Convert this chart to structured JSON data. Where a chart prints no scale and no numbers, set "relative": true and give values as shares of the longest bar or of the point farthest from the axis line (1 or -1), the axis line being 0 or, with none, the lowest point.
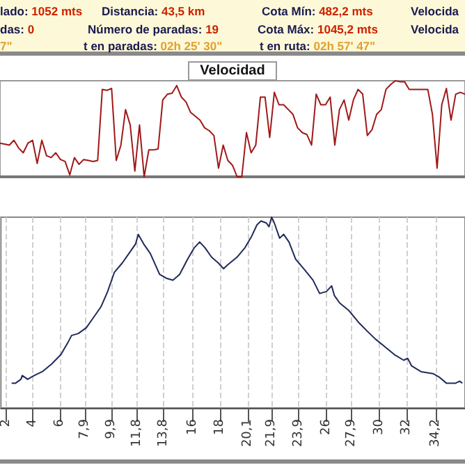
{
  "chart_data": [
    {
      "type": "other",
      "annotations": [
        "lado: 1052 mts",
        "Distancia: 43,5 km",
        "Cota Mín: 482,2 mts",
        "Velocida",
        "das: 0",
        "Número de paradas: 19",
        "Cota Máx: 1045,2 mts",
        "Velocida",
        "7\"",
        "t en paradas: 02h 25' 30\"",
        "t en ruta: 02h 57' 47\""
      ]
    },
    {
      "type": "line",
      "title": "Velocidad",
      "relative": true,
      "tick_labels": false,
      "color": "#a01818",
      "categories": [
        null,
        null,
        null,
        null,
        null,
        null,
        null,
        null,
        null,
        null,
        null,
        null,
        null,
        null,
        null,
        null,
        null,
        null,
        null,
        null,
        null,
        null,
        null,
        null,
        null,
        null,
        null,
        null,
        null,
        null,
        null,
        null,
        null,
        null,
        null,
        null,
        null,
        null,
        null,
        null,
        null,
        null,
        null,
        null,
        null,
        null,
        null,
        null,
        null,
        null,
        null,
        null,
        null,
        null,
        null,
        null,
        null,
        null,
        null,
        null,
        null,
        null,
        null,
        null,
        null,
        null,
        null,
        null,
        null,
        null,
        null,
        null,
        null,
        null,
        null,
        null,
        null,
        null,
        null,
        null,
        null,
        null,
        null,
        null,
        null,
        null,
        null,
        null,
        null,
        null,
        null,
        null,
        null,
        null,
        null,
        null,
        null,
        null,
        null,
        null,
        null
      ],
      "values": [
        0.35,
        0.34,
        0.33,
        0.38,
        0.3,
        0.25,
        0.35,
        0.38,
        0.14,
        0.38,
        0.22,
        0.2,
        0.25,
        0.18,
        0.16,
        0.02,
        0.2,
        0.13,
        0.18,
        0.17,
        0.16,
        0.17,
        0.91,
        0.9,
        0.92,
        0.17,
        0.33,
        0.7,
        0.54,
        0.06,
        0.54,
        0,
        0.28,
        0.28,
        0.29,
        0.8,
        0.86,
        0.87,
        0.95,
        0.83,
        0.78,
        0.67,
        0.63,
        0.59,
        0.51,
        0.48,
        0.43,
        0.09,
        0.33,
        0.17,
        0.12,
        0,
        0,
        0.46,
        0.25,
        0.33,
        0.83,
        0.83,
        0.41,
        0.88,
        0.75,
        0.75,
        0.7,
        0.65,
        0.51,
        0.46,
        0.44,
        0.33,
        0.86,
        0.75,
        0.75,
        0.83,
        0.33,
        0.7,
        0.8,
        0.59,
        0.8,
        0.91,
        0.86,
        0.43,
        0.49,
        0.65,
        0.7,
        0.91,
        0.96,
        1,
        0.99,
        0.99,
        0.91,
        0.91,
        0.91,
        0.91,
        0.91,
        0.65,
        0.09,
        0.75,
        0.92,
        0.59,
        0.86,
        0.88,
        0.86
      ]
    },
    {
      "type": "line",
      "relative": true,
      "tick_labels": "x",
      "grid": "x",
      "color": "#1f2a5a",
      "xlim": [
        1.6,
        36.4
      ],
      "xticks": [
        2,
        4,
        6,
        {
          "value": 7.9,
          "label": "7,9"
        },
        {
          "value": 9.9,
          "label": "9,9"
        },
        {
          "value": 11.8,
          "label": "11,8"
        },
        {
          "value": 13.8,
          "label": "13,8"
        },
        16,
        18,
        {
          "value": 20.1,
          "label": "20,1"
        },
        {
          "value": 21.9,
          "label": "21,9"
        },
        {
          "value": 23.9,
          "label": "23,9"
        },
        26,
        {
          "value": 27.9,
          "label": "27,9"
        },
        30,
        32,
        {
          "value": 34.2,
          "label": "34,2"
        }
      ],
      "x": [
        2.4,
        2.7,
        3.1,
        3.2,
        3.6,
        4.1,
        4.7,
        5.4,
        6.1,
        6.6,
        6.9,
        7.4,
        8.0,
        8.5,
        9.1,
        9.6,
        10.1,
        10.7,
        11.2,
        11.7,
        11.9,
        12.3,
        12.8,
        13.5,
        14.0,
        14.5,
        15.0,
        15.6,
        16.1,
        16.5,
        16.9,
        17.4,
        17.9,
        18.3,
        18.6,
        19.3,
        19.9,
        20.4,
        20.8,
        21.1,
        21.5,
        21.7,
        21.9,
        22.1,
        22.5,
        22.8,
        23.2,
        23.7,
        24.3,
        25.0,
        25.5,
        26.0,
        26.4,
        26.6,
        27.0,
        27.7,
        28.4,
        29.1,
        29.7,
        30.4,
        31.1,
        31.8,
        32.1,
        32.4,
        33.1,
        34.0,
        34.5,
        35.0,
        35.7,
        36.0,
        36.2
      ],
      "values": [
        0.13,
        0.13,
        0.15,
        0.17,
        0.15,
        0.17,
        0.19,
        0.23,
        0.28,
        0.34,
        0.38,
        0.39,
        0.42,
        0.47,
        0.53,
        0.61,
        0.71,
        0.76,
        0.81,
        0.86,
        0.91,
        0.86,
        0.81,
        0.7,
        0.68,
        0.67,
        0.7,
        0.78,
        0.84,
        0.87,
        0.84,
        0.79,
        0.76,
        0.73,
        0.75,
        0.79,
        0.84,
        0.9,
        0.96,
        0.98,
        0.97,
        0.95,
        1,
        0.97,
        0.89,
        0.91,
        0.87,
        0.78,
        0.73,
        0.67,
        0.6,
        0.61,
        0.64,
        0.59,
        0.55,
        0.51,
        0.45,
        0.4,
        0.36,
        0.32,
        0.28,
        0.25,
        0.26,
        0.22,
        0.19,
        0.18,
        0.16,
        0.13,
        0.13,
        0.14,
        0.13
      ]
    }
  ]
}
